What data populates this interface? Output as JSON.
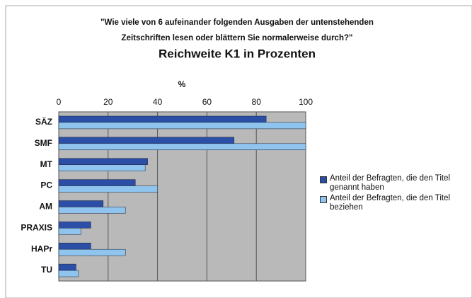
{
  "chart_data": {
    "type": "hbar",
    "question": [
      "\"Wie viele von 6 aufeinander folgenden Ausgaben der untenstehenden",
      "Zeitschriften lesen oder blättern Sie normalerweise durch?\""
    ],
    "title": "Reichweite K1 in Prozenten",
    "x_label": "%",
    "categories": [
      "SÄZ",
      "SMF",
      "MT",
      "PC",
      "AM",
      "PRAXIS",
      "HAPr",
      "TU"
    ],
    "series": [
      {
        "name": "Anteil der Befragten, die den Titel genannt haben",
        "color": "#2b4fa6",
        "values": [
          84,
          71,
          36,
          31,
          18,
          13,
          13,
          7
        ]
      },
      {
        "name": "Anteil der Befragten, die den Titel beziehen",
        "color": "#8ec4ee",
        "values": [
          100,
          100,
          35,
          40,
          27,
          9,
          27,
          8
        ]
      }
    ],
    "xlim": [
      0,
      100
    ],
    "xticks": [
      0,
      20,
      40,
      60,
      80,
      100
    ],
    "grid": true,
    "legend": "right"
  }
}
